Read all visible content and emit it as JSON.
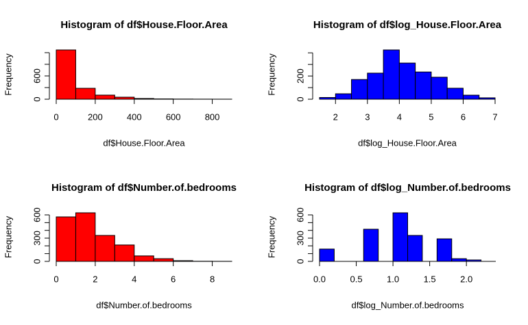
{
  "chart_data": [
    {
      "type": "histogram",
      "title": "Histogram of df$House.Floor.Area",
      "x_label": "df$House.Floor.Area",
      "y_label": "Frequency",
      "color": "#ff0000",
      "bins": [
        0,
        100,
        200,
        300,
        400,
        500,
        600,
        700,
        800,
        900
      ],
      "values": [
        1270,
        282,
        106,
        53,
        18,
        8,
        4,
        2,
        1
      ],
      "xlim": [
        0,
        900
      ],
      "xticks": [
        0,
        200,
        400,
        600,
        800
      ],
      "ylim": [
        0,
        1270
      ],
      "yticks": [
        0,
        {
          "value": 300,
          "label": null
        },
        600,
        {
          "value": 900,
          "label": null
        },
        {
          "value": 1200,
          "label": null
        }
      ]
    },
    {
      "type": "histogram",
      "title": "Histogram of df$log_House.Floor.Area",
      "x_label": "df$log_House.Floor.Area",
      "y_label": "Frequency",
      "color": "#0000ff",
      "bins": [
        1.5,
        2,
        2.5,
        3,
        3.5,
        4,
        4.5,
        5,
        5.5,
        6,
        6.5,
        7
      ],
      "values": [
        15,
        47,
        170,
        225,
        425,
        312,
        235,
        190,
        95,
        35,
        12
      ],
      "xlim": [
        1.5,
        7
      ],
      "xticks": [
        2,
        3,
        4,
        5,
        6,
        7
      ],
      "ylim": [
        0,
        425
      ],
      "yticks": [
        0,
        {
          "value": 100,
          "label": null
        },
        200,
        {
          "value": 300,
          "label": null
        },
        {
          "value": 400,
          "label": null
        }
      ]
    },
    {
      "type": "histogram",
      "title": "Histogram of df$Number.of.bedrooms",
      "x_label": "df$Number.of.bedrooms",
      "y_label": "Frequency",
      "color": "#ff0000",
      "bins": [
        0,
        1,
        2,
        3,
        4,
        5,
        6,
        7,
        8,
        9
      ],
      "values": [
        574,
        627,
        335,
        212,
        71,
        35,
        9,
        2,
        1
      ],
      "xlim": [
        0,
        9
      ],
      "xticks": [
        0,
        2,
        4,
        6,
        8
      ],
      "ylim": [
        0,
        627
      ],
      "yticks": [
        0,
        {
          "value": 100,
          "label": null
        },
        {
          "value": 200,
          "label": null
        },
        300,
        {
          "value": 400,
          "label": null
        },
        {
          "value": 500,
          "label": null
        },
        600
      ]
    },
    {
      "type": "histogram",
      "title": "Histogram of df$log_Number.of.bedrooms",
      "x_label": "df$log_Number.of.bedrooms",
      "y_label": "Frequency",
      "color": "#0000ff",
      "bins": [
        0,
        0.2,
        0.4,
        0.6,
        0.8,
        1.0,
        1.2,
        1.4,
        1.6,
        1.8,
        2.0,
        2.2
      ],
      "values": [
        159,
        0,
        0,
        415,
        0,
        627,
        335,
        0,
        291,
        35,
        18
      ],
      "xlim": [
        0,
        2.4
      ],
      "xticks": [
        {
          "value": 0,
          "label": "0.0"
        },
        {
          "value": 0.5,
          "label": "0.5"
        },
        {
          "value": 1,
          "label": "1.0"
        },
        {
          "value": 1.5,
          "label": "1.5"
        },
        {
          "value": 2,
          "label": "2.0"
        }
      ],
      "ylim": [
        0,
        627
      ],
      "yticks": [
        0,
        {
          "value": 100,
          "label": null
        },
        {
          "value": 200,
          "label": null
        },
        300,
        {
          "value": 400,
          "label": null
        },
        {
          "value": 500,
          "label": null
        },
        600
      ]
    }
  ]
}
